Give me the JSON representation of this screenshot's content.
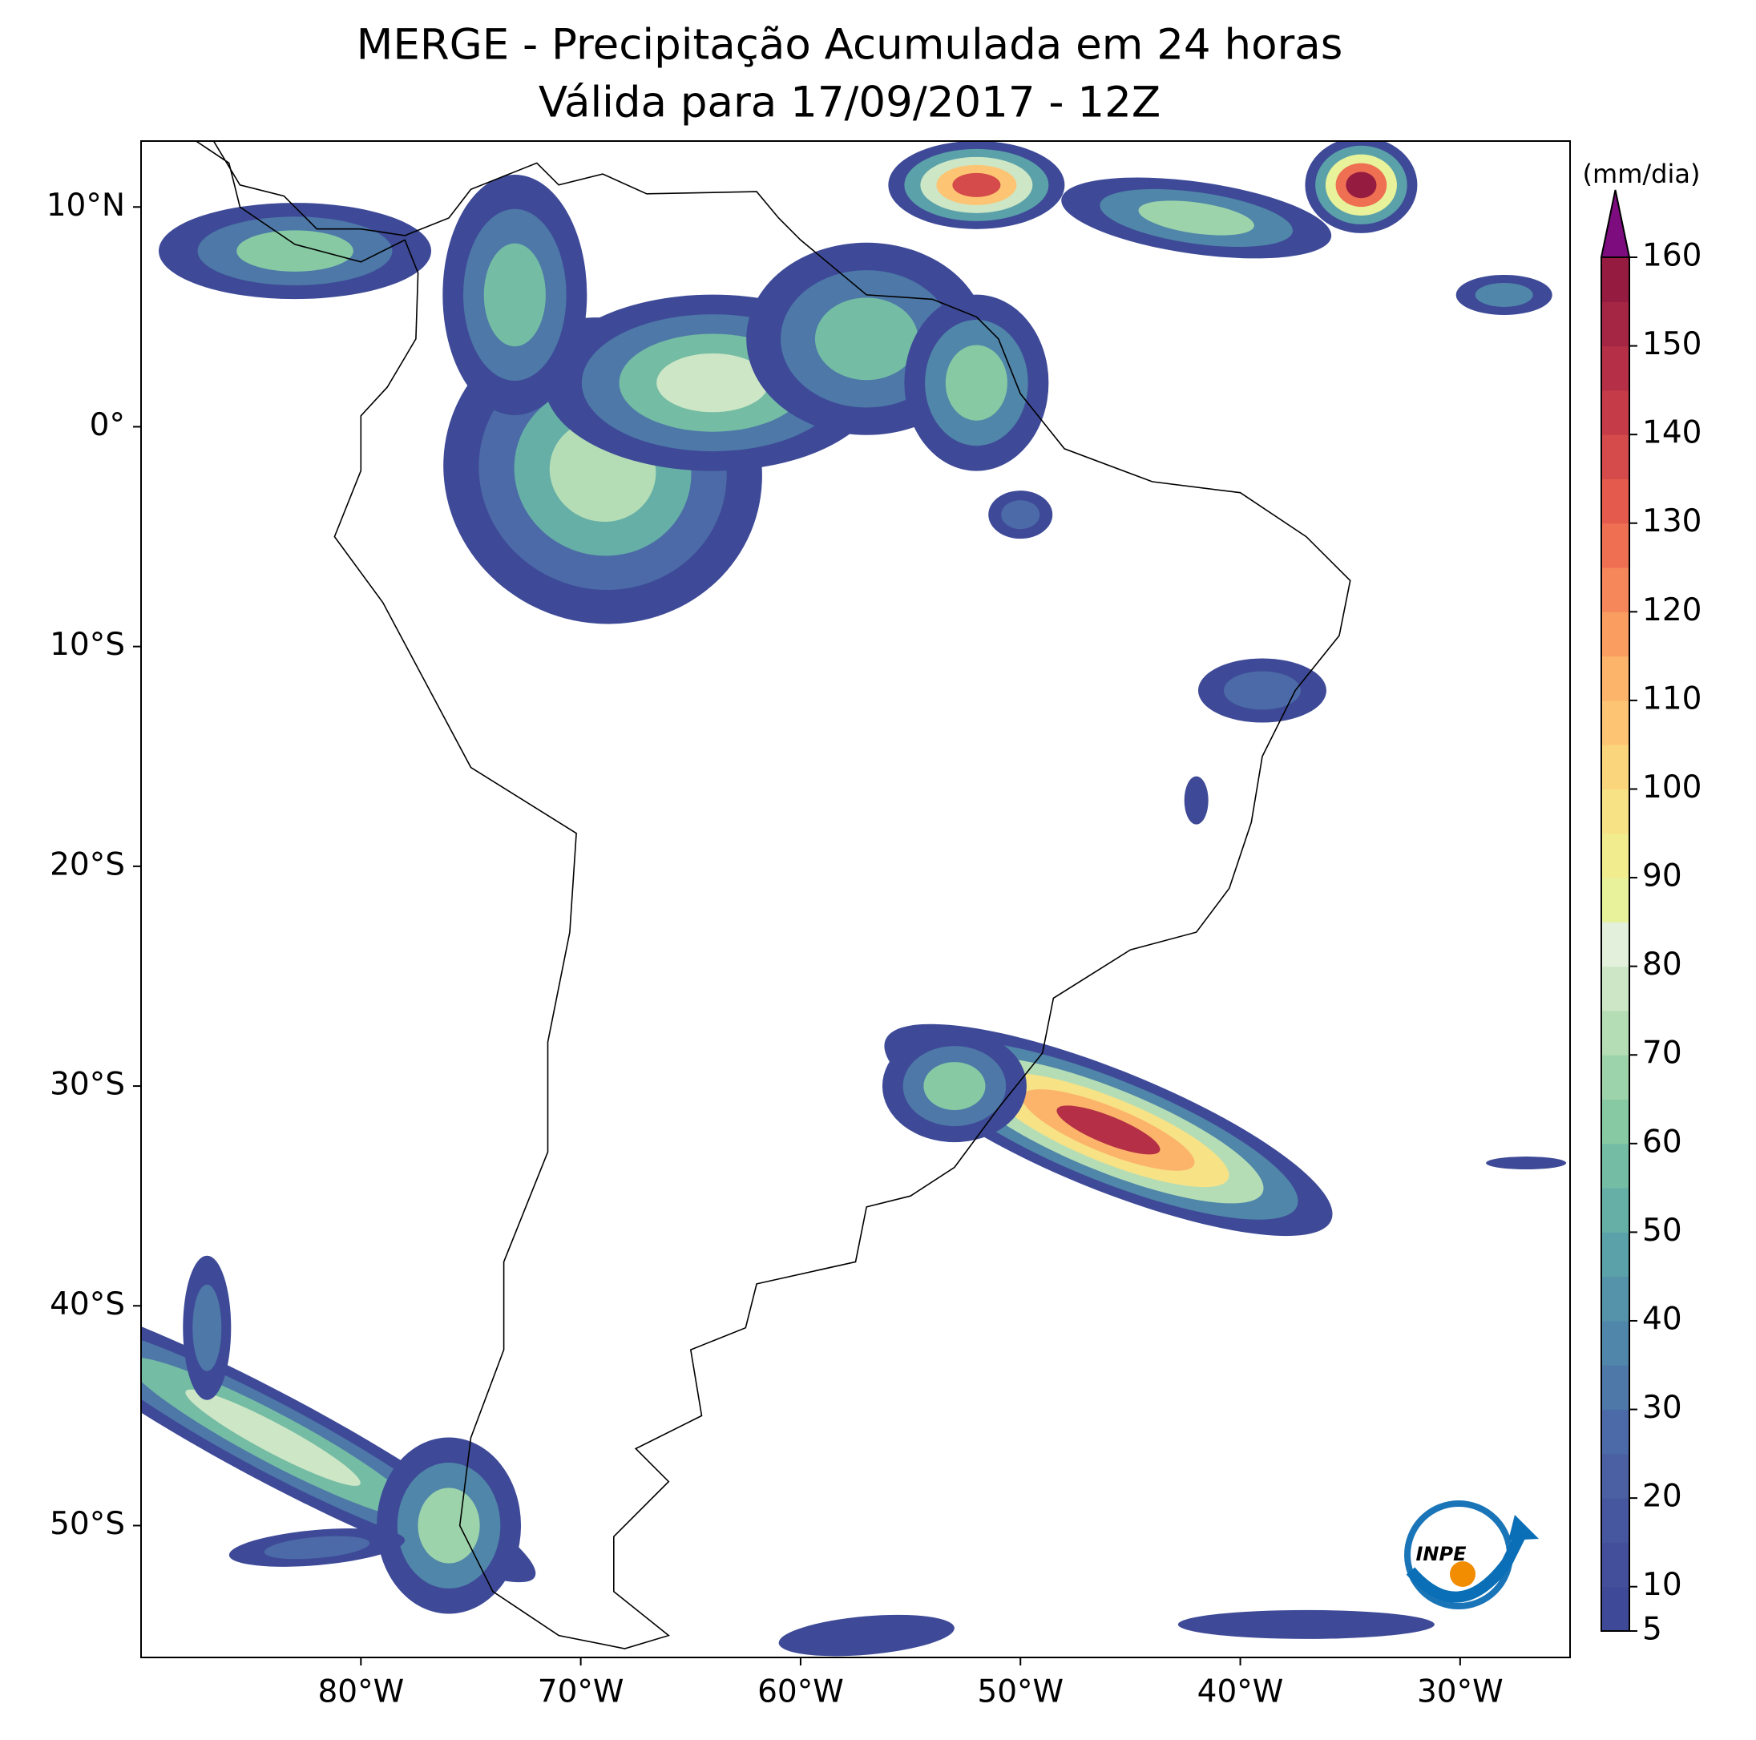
{
  "title": "MERGE - Precipitação Acumulada em 24 horas",
  "subtitle": "Válida para 17/09/2017 - 12Z",
  "map": {
    "lonlim": [
      -90,
      -25
    ],
    "latlim": [
      -56,
      13
    ],
    "lon_ticks": [
      {
        "value": -80,
        "label": "80°W"
      },
      {
        "value": -70,
        "label": "70°W"
      },
      {
        "value": -60,
        "label": "60°W"
      },
      {
        "value": -50,
        "label": "50°W"
      },
      {
        "value": -40,
        "label": "40°W"
      },
      {
        "value": -30,
        "label": "30°W"
      }
    ],
    "lat_ticks": [
      {
        "value": 10,
        "label": "10°N"
      },
      {
        "value": 0,
        "label": "0°"
      },
      {
        "value": -10,
        "label": "10°S"
      },
      {
        "value": -20,
        "label": "20°S"
      },
      {
        "value": -30,
        "label": "30°S"
      },
      {
        "value": -40,
        "label": "40°S"
      },
      {
        "value": -50,
        "label": "50°S"
      }
    ]
  },
  "colorbar": {
    "label": "(mm/dia)",
    "lim": [
      5,
      160
    ],
    "ticks": [
      5,
      10,
      20,
      30,
      40,
      50,
      60,
      70,
      80,
      90,
      100,
      110,
      120,
      130,
      140,
      150,
      160
    ],
    "colors": [
      "#3e4a97",
      "#434f9b",
      "#47579f",
      "#4a60a3",
      "#4b6aa7",
      "#4d78a8",
      "#5086a9",
      "#5593aa",
      "#5ba1a9",
      "#66afa6",
      "#74bca3",
      "#86c9a3",
      "#9dd3aa",
      "#b5ddb5",
      "#cce6c6",
      "#e2f0dc",
      "#e7f29a",
      "#f1ec8e",
      "#f7e286",
      "#fbd57c",
      "#fdc573",
      "#fcb46a",
      "#f99e60",
      "#f5875a",
      "#ef6f53",
      "#e45b4d",
      "#d54a4a",
      "#c53c48",
      "#b52f46",
      "#a52544",
      "#951c40"
    ],
    "extend_color": "#7d0c7f"
  },
  "logo": {
    "text": "INPE"
  }
}
